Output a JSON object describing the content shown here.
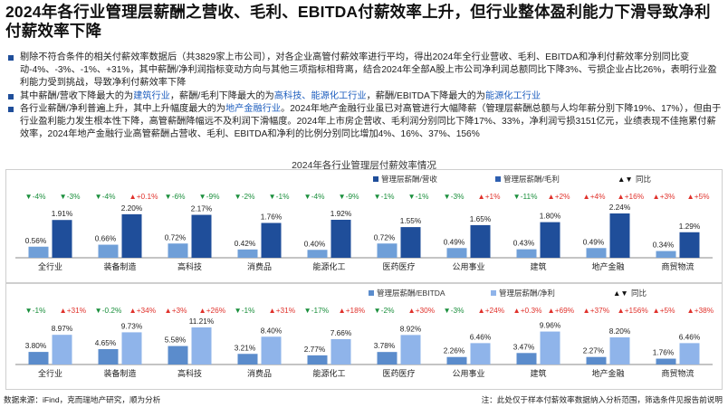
{
  "title": "2024年各行业管理层薪酬之营收、毛利、EBITDA付薪效率上升，但行业整体盈利能力下滑导致净利付薪效率下降",
  "bullets": [
    {
      "parts": [
        {
          "t": "剔除不符合条件的相关付薪效率数据后（共3829家上市公司），对各企业高管付薪效率进行平均，得出2024年全行业营收、毛利、EBITDA和净利付薪效率分别同比变动-4%、-3%、-1%、+31%，其中薪酬/净利润指标变动方向与其他三项指标相背离，结合2024年全部A股上市公司净利润总额同比下降3%、亏损企业占比26%，表明行业盈利能力受到挑战，导致净利付薪效率下降",
          "h": false
        }
      ]
    },
    {
      "parts": [
        {
          "t": "其中薪酬/营收下降最大的为",
          "h": false
        },
        {
          "t": "建筑行业",
          "h": true
        },
        {
          "t": "，薪酬/毛利下降最大的为",
          "h": false
        },
        {
          "t": "高科技、能源化工行业",
          "h": true
        },
        {
          "t": "，薪酬/EBITDA下降最大的为",
          "h": false
        },
        {
          "t": "能源化工行业",
          "h": true
        }
      ]
    },
    {
      "parts": [
        {
          "t": "各行业薪酬/净利普遍上升，其中上升幅度最大的为",
          "h": false
        },
        {
          "t": "地产金融行业",
          "h": true
        },
        {
          "t": "。2024年地产金融行业虽已对高管进行大幅降薪（管理层薪酬总额与人均年薪分别下降19%、17%），但由于行业盈利能力发生根本性下降，高管薪酬降幅远不及利润下滑幅度。2024年上市房企营收、毛利润分别同比下降17%、33%，净利润亏损3151亿元，业绩表现不佳拖累付薪效率，2024年地产金融行业高管薪酬占营收、毛利、EBITDA和净利的比例分别同比增加4%、16%、37%、156%",
          "h": false
        }
      ]
    }
  ],
  "chart_title": "2024年各行业管理层付薪效率情况",
  "legend1": {
    "a": "管理层薪酬/营收",
    "b": "管理层薪酬/毛利",
    "c": "同比"
  },
  "legend2": {
    "a": "管理层薪酬/EBITDA",
    "b": "管理层薪酬/净利",
    "c": "同比"
  },
  "footer": {
    "source": "数据来源：iFind，克而瑞地产研究，顺为分析",
    "note": "注：此处仅于样本付薪效率数据纳入分析范围，筛选条件见报告前说明"
  },
  "colors": {
    "light": "#6f9fd8",
    "dark": "#1f4e9a",
    "green": "#1a8f3c",
    "red": "#e0312b",
    "title_blue": "#1f5fbf"
  },
  "chart_data": [
    {
      "type": "bar",
      "categories": [
        "全行业",
        "装备制造",
        "高科技",
        "消费品",
        "能源化工",
        "医药医疗",
        "公用事业",
        "建筑",
        "地产金融",
        "商贸物流"
      ],
      "series": [
        {
          "name": "管理层薪酬/营收",
          "values": [
            0.56,
            0.66,
            0.72,
            0.42,
            0.4,
            0.72,
            0.49,
            0.43,
            0.49,
            0.34
          ],
          "labels": [
            "0.56%",
            "0.66%",
            "0.72%",
            "0.42%",
            "0.40%",
            "0.72%",
            "0.49%",
            "0.43%",
            "0.49%",
            "0.34%"
          ],
          "yoy": [
            "-4%",
            "-4%",
            "-6%",
            "-2%",
            "-4%",
            "-1%",
            "-3%",
            "-11%",
            "+4%",
            "+3%"
          ]
        },
        {
          "name": "管理层薪酬/毛利",
          "values": [
            1.91,
            2.2,
            2.17,
            1.76,
            1.92,
            1.55,
            1.65,
            1.8,
            2.24,
            1.29
          ],
          "labels": [
            "1.91%",
            "2.20%",
            "2.17%",
            "1.76%",
            "1.92%",
            "1.55%",
            "1.65%",
            "1.80%",
            "2.24%",
            "1.29%"
          ],
          "yoy": [
            "-3%",
            "+0.1%",
            "-9%",
            "-1%",
            "-9%",
            "-1%",
            "+1%",
            "+2%",
            "+16%",
            "+5%"
          ]
        }
      ],
      "legend_yoy": "同比",
      "unit": "%"
    },
    {
      "type": "bar",
      "categories": [
        "全行业",
        "装备制造",
        "高科技",
        "消费品",
        "能源化工",
        "医药医疗",
        "公用事业",
        "建筑",
        "地产金融",
        "商贸物流"
      ],
      "series": [
        {
          "name": "管理层薪酬/EBITDA",
          "values": [
            3.8,
            4.65,
            5.58,
            3.21,
            2.77,
            3.78,
            2.26,
            3.47,
            2.27,
            1.76
          ],
          "labels": [
            "3.80%",
            "4.65%",
            "5.58%",
            "3.21%",
            "2.77%",
            "3.78%",
            "2.26%",
            "3.47%",
            "2.27%",
            "1.76%"
          ],
          "yoy": [
            "-1%",
            "-0.2%",
            "+3%",
            "-1%",
            "-17%",
            "-2%",
            "-3%",
            "+0.3%",
            "+37%",
            "+5%"
          ]
        },
        {
          "name": "管理层薪酬/净利",
          "values": [
            8.97,
            9.73,
            11.21,
            8.4,
            7.66,
            8.92,
            6.46,
            9.96,
            8.2,
            6.46
          ],
          "labels": [
            "8.97%",
            "9.73%",
            "11.21%",
            "8.40%",
            "7.66%",
            "8.92%",
            "6.46%",
            "9.96%",
            "8.20%",
            "6.46%"
          ],
          "yoy": [
            "+31%",
            "+34%",
            "+26%",
            "+31%",
            "+18%",
            "+30%",
            "+24%",
            "+69%",
            "+156%",
            "+38%"
          ]
        }
      ],
      "legend_yoy": "同比",
      "unit": "%"
    }
  ]
}
